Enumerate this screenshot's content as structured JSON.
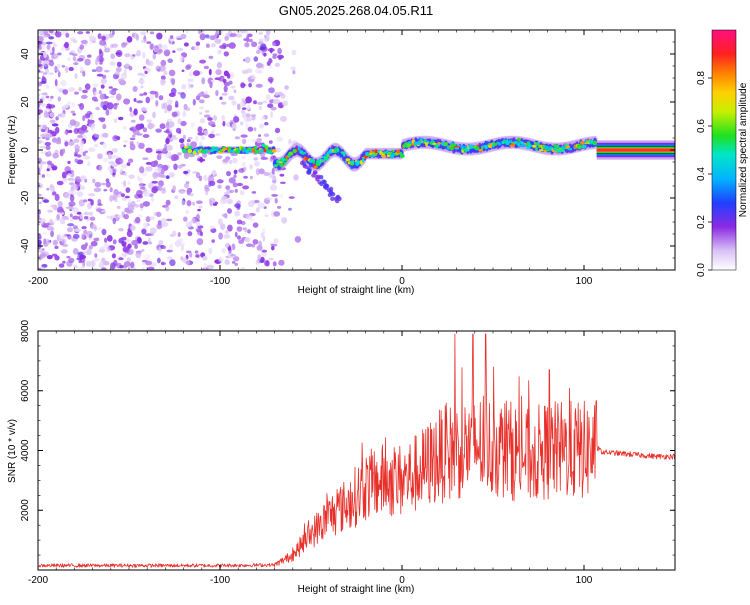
{
  "title": "GN05.2025.268.04.05.R11",
  "chart_data": [
    {
      "type": "heatmap",
      "xlabel": "Height of straight line (km)",
      "ylabel": "Frequency (Hz)",
      "xlim": [
        -200,
        150
      ],
      "ylim": [
        -50,
        50
      ],
      "xticks": [
        -200,
        -100,
        0,
        100
      ],
      "yticks": [
        -40,
        -20,
        0,
        20,
        40
      ],
      "colorbar": {
        "label": "Normalized spectral amplitude",
        "range": [
          0,
          1
        ],
        "ticks": [
          "0.0",
          "0.2",
          "0.4",
          "0.6",
          "0.8"
        ],
        "tick_values": [
          0.0,
          0.2,
          0.4,
          0.6,
          0.8
        ]
      },
      "regions": [
        {
          "name": "broadband-noise",
          "x_range": [
            -200,
            -65
          ],
          "freq_range": [
            -50,
            50
          ],
          "amplitude": 0.1
        },
        {
          "name": "signal-track",
          "x_range": [
            -120,
            150
          ],
          "center_freq": 0,
          "amplitude": 0.5
        },
        {
          "name": "secondary-branch",
          "x_range": [
            -55,
            -33
          ],
          "freq_range": [
            -22,
            -5
          ],
          "amplitude": 0.15
        },
        {
          "name": "flat-tail",
          "x_range": [
            107,
            150
          ],
          "center_freq": 0,
          "amplitude": 0.85
        }
      ]
    },
    {
      "type": "line",
      "xlabel": "Height of straight line (km)",
      "ylabel": "SNR (10 * v/v)",
      "xlim": [
        -200,
        150
      ],
      "ylim": [
        0,
        8000
      ],
      "xticks": [
        -200,
        -100,
        0,
        100
      ],
      "yticks": [
        2000,
        4000,
        6000,
        8000
      ],
      "color": "#e8302a",
      "series": [
        {
          "name": "SNR",
          "x": [
            -200,
            -150,
            -100,
            -70,
            -60,
            -50,
            -40,
            -30,
            -20,
            -10,
            0,
            10,
            20,
            30,
            40,
            50,
            60,
            70,
            80,
            90,
            100,
            107,
            110,
            120,
            130,
            140,
            150
          ],
          "y": [
            150,
            150,
            150,
            170,
            500,
            1200,
            1800,
            2200,
            2800,
            3000,
            3000,
            3300,
            3800,
            4000,
            4200,
            4100,
            4000,
            3800,
            4000,
            4000,
            4000,
            4100,
            3950,
            3900,
            3850,
            3800,
            3800
          ]
        }
      ],
      "peaks": [
        {
          "x": 29,
          "y": 7900
        },
        {
          "x": 39,
          "y": 7900
        },
        {
          "x": 46,
          "y": 7900
        },
        {
          "x": 81,
          "y": 6700
        }
      ]
    }
  ]
}
